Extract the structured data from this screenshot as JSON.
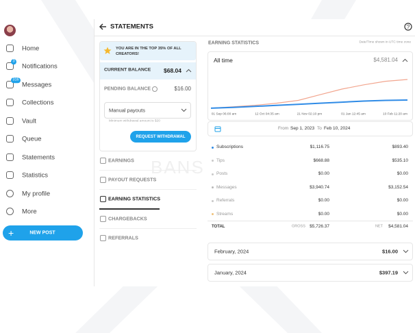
{
  "sidebar": {
    "nav": [
      {
        "label": "Home"
      },
      {
        "label": "Notifications",
        "badge": "3"
      },
      {
        "label": "Messages",
        "badge": "316"
      },
      {
        "label": "Collections"
      },
      {
        "label": "Vault"
      },
      {
        "label": "Queue"
      },
      {
        "label": "Statements"
      },
      {
        "label": "Statistics"
      },
      {
        "label": "My profile"
      },
      {
        "label": "More"
      }
    ],
    "new_post": "NEW POST"
  },
  "header": {
    "title": "STATEMENTS"
  },
  "balance": {
    "banner": "YOU ARE IN THE TOP 35% OF ALL CREATORS!",
    "current_label": "CURRENT BALANCE",
    "current_value": "$68.04",
    "pending_label": "PENDING BALANCE",
    "pending_value": "$16.00",
    "payout_select": "Manual payouts",
    "min_note": "Minimum withdrawal amount is $20",
    "withdraw_button": "REQUEST WITHDRAWAL"
  },
  "menu": [
    {
      "label": "EARNINGS"
    },
    {
      "label": "PAYOUT REQUESTS"
    },
    {
      "label": "EARNING STATISTICS",
      "active": true
    },
    {
      "label": "CHARGEBACKS"
    },
    {
      "label": "REFERRALS"
    }
  ],
  "watermark": "BANS",
  "statistics": {
    "title": "EARNING STATISTICS",
    "timezone_note": "Date/Time shown in UTC time zone",
    "period": "All time",
    "period_total": "$4,581.04",
    "chart": {
      "ylim": [
        0,
        6000
      ],
      "x_labels": [
        "01 Sep 06:00 am",
        "12 Oct 04:35 am",
        "21 Nov 02:10 pm",
        "01 Jan 12:45 am",
        "10 Feb 11:20 am"
      ],
      "series": [
        {
          "color": "#f2a58e",
          "values": [
            400,
            600,
            800,
            1100,
            1500,
            2300,
            3100,
            3700,
            4200,
            4450
          ]
        },
        {
          "color": "#2f8be6",
          "values": [
            400,
            500,
            650,
            800,
            950,
            1100,
            1250,
            1400,
            1500,
            1550
          ]
        }
      ]
    },
    "date_range": {
      "from_label": "From",
      "from": "Sep 1, 2023",
      "to_label": "To",
      "to": "Feb 10, 2024"
    },
    "rows": [
      {
        "label": "Subscriptions",
        "gross": "$1,116.75",
        "net": "$893.40",
        "color": "#2f8be6"
      },
      {
        "label": "Tips",
        "gross": "$668.88",
        "net": "$535.10",
        "color": "#c9c9c9"
      },
      {
        "label": "Posts",
        "gross": "$0.00",
        "net": "$0.00",
        "color": "#c9c9c9"
      },
      {
        "label": "Messages",
        "gross": "$3,940.74",
        "net": "$3,152.54",
        "color": "#b8b8b8"
      },
      {
        "label": "Referrals",
        "gross": "$0.00",
        "net": "$0.00",
        "color": "#c9c9c9"
      },
      {
        "label": "Streams",
        "gross": "$0.00",
        "net": "$0.00",
        "color": "#f0c27a"
      }
    ],
    "total": {
      "label": "TOTAL",
      "gross_label": "GROSS",
      "gross": "$5,726.37",
      "net_label": "NET",
      "net": "$4,581.04"
    },
    "months": [
      {
        "label": "February, 2024",
        "value": "$16.00"
      },
      {
        "label": "January, 2024",
        "value": "$397.19"
      }
    ]
  }
}
